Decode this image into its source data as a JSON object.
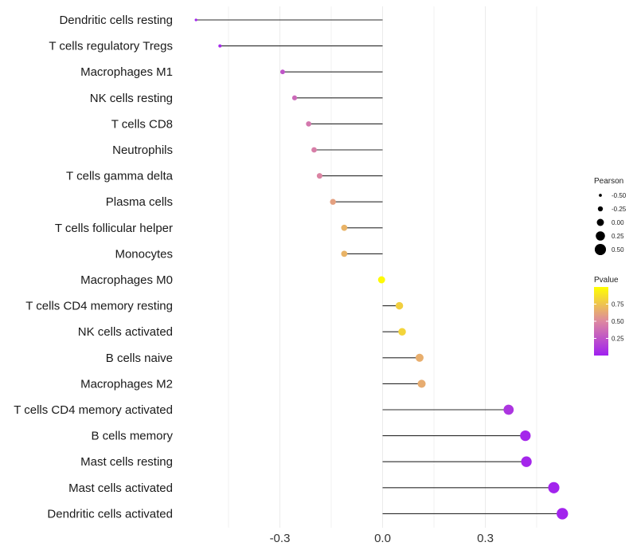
{
  "chart_data": {
    "type": "lollipop",
    "xlim": [
      -0.55,
      0.56
    ],
    "x_ticks": [
      -0.3,
      0.0,
      0.3
    ],
    "x_tick_labels": [
      "-0.3",
      "0.0",
      "0.3"
    ],
    "categories": [
      "Dendritic cells resting",
      "T cells regulatory  Tregs",
      "Macrophages M1",
      "NK cells resting",
      "T cells CD8",
      "Neutrophils",
      "T cells gamma delta",
      "Plasma cells",
      "T cells follicular helper",
      "Monocytes",
      "Macrophages M0",
      "T cells CD4 memory resting",
      "NK cells activated",
      "B cells naive",
      "Macrophages M2",
      "T cells CD4 memory activated",
      "B cells memory",
      "Mast cells resting",
      "Mast cells activated",
      "Dendritic cells activated"
    ],
    "pearson": [
      -0.545,
      -0.475,
      -0.292,
      -0.257,
      -0.216,
      -0.2,
      -0.184,
      -0.145,
      -0.112,
      -0.112,
      -0.003,
      0.049,
      0.057,
      0.108,
      0.114,
      0.368,
      0.417,
      0.42,
      0.5,
      0.525
    ],
    "pvalue": [
      0.02,
      0.04,
      0.25,
      0.35,
      0.42,
      0.45,
      0.48,
      0.6,
      0.68,
      0.68,
      0.98,
      0.8,
      0.82,
      0.66,
      0.65,
      0.1,
      0.03,
      0.03,
      0.02,
      0.02
    ],
    "size_legend": {
      "title": "Pearson",
      "labels": [
        "-0.50",
        "-0.25",
        "0.00",
        "0.25",
        "0.50"
      ],
      "values": [
        -0.5,
        -0.25,
        0.0,
        0.25,
        0.5
      ]
    },
    "color_legend": {
      "title": "Pvalue",
      "labels": [
        "0.75",
        "0.50",
        "0.25"
      ],
      "values": [
        0.75,
        0.5,
        0.25
      ],
      "range": [
        0.0,
        1.0
      ],
      "low_color": "#a020f0",
      "mid_color": "#dd88a0",
      "high_color": "#ffff00"
    }
  }
}
